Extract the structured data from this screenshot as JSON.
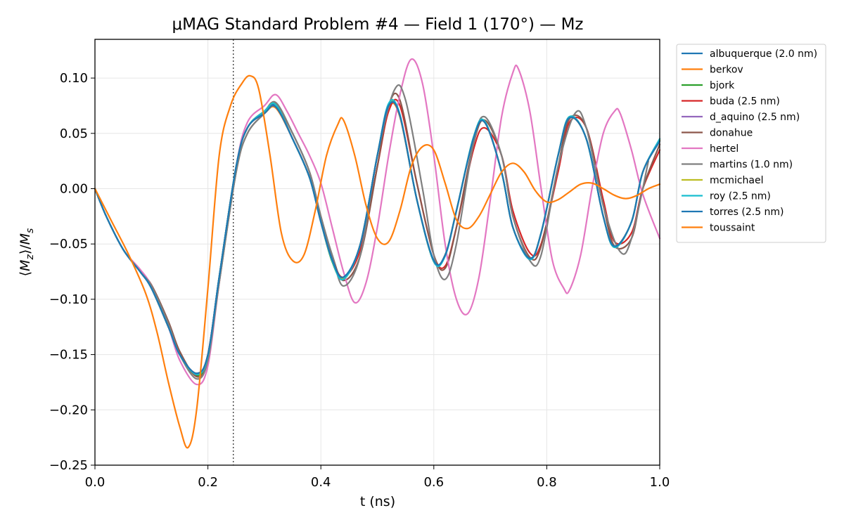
{
  "chart_data": {
    "type": "line",
    "title": "μMAG Standard Problem #4 — Field 1 (170°) — Mz",
    "xlabel": "t (ns)",
    "ylabel": "⟨M_z⟩/M_s",
    "ylabel_parts": [
      "⟨",
      "M",
      "z",
      "⟩/",
      "M",
      "s"
    ],
    "xlim": [
      0.0,
      1.0
    ],
    "ylim": [
      -0.25,
      0.135
    ],
    "xticks": [
      0.0,
      0.2,
      0.4,
      0.6,
      0.8,
      1.0
    ],
    "xtick_labels": [
      "0.0",
      "0.2",
      "0.4",
      "0.6",
      "0.8",
      "1.0"
    ],
    "yticks": [
      -0.25,
      -0.2,
      -0.15,
      -0.1,
      -0.05,
      0.0,
      0.05,
      0.1
    ],
    "ytick_labels": [
      "−0.25",
      "−0.20",
      "−0.15",
      "−0.10",
      "−0.05",
      "0.00",
      "0.05",
      "0.10"
    ],
    "grid": true,
    "legend_position": "outside-right",
    "reference_line": {
      "x": 0.245,
      "style": "dotted"
    },
    "series": [
      {
        "name": "albuquerque (2.0 nm)",
        "color": "#1f77b4",
        "x": [
          0.0,
          0.02,
          0.05,
          0.08,
          0.1,
          0.13,
          0.15,
          0.18,
          0.2,
          0.22,
          0.25,
          0.27,
          0.3,
          0.32,
          0.35,
          0.38,
          0.4,
          0.42,
          0.44,
          0.47,
          0.5,
          0.52,
          0.54,
          0.57,
          0.6,
          0.62,
          0.64,
          0.67,
          0.69,
          0.72,
          0.74,
          0.77,
          0.79,
          0.82,
          0.84,
          0.87,
          0.9,
          0.92,
          0.95,
          0.97,
          1.0
        ],
        "y": [
          0.0,
          -0.025,
          -0.055,
          -0.075,
          -0.09,
          -0.125,
          -0.15,
          -0.168,
          -0.15,
          -0.08,
          0.02,
          0.055,
          0.07,
          0.075,
          0.045,
          0.01,
          -0.03,
          -0.065,
          -0.08,
          -0.05,
          0.03,
          0.075,
          0.065,
          -0.01,
          -0.065,
          -0.06,
          -0.02,
          0.045,
          0.06,
          0.015,
          -0.035,
          -0.063,
          -0.04,
          0.03,
          0.064,
          0.045,
          -0.025,
          -0.052,
          -0.03,
          0.015,
          0.045
        ]
      },
      {
        "name": "berkov",
        "color": "#ff7f0e",
        "x": [
          0.0,
          0.02,
          0.05,
          0.08,
          0.1,
          0.13,
          0.15,
          0.18,
          0.2,
          0.22,
          0.25,
          0.27,
          0.3,
          0.32,
          0.35,
          0.38,
          0.4,
          0.42,
          0.44,
          0.47,
          0.5,
          0.52,
          0.54,
          0.57,
          0.6,
          0.62,
          0.64,
          0.67,
          0.69,
          0.72,
          0.74,
          0.77,
          0.79,
          0.82,
          0.84,
          0.87,
          0.9,
          0.92,
          0.95,
          0.97,
          1.0
        ],
        "y": [
          0.0,
          -0.025,
          -0.055,
          -0.075,
          -0.09,
          -0.125,
          -0.15,
          -0.168,
          -0.15,
          -0.08,
          0.02,
          0.055,
          0.068,
          0.073,
          0.045,
          0.01,
          -0.03,
          -0.065,
          -0.082,
          -0.05,
          0.03,
          0.074,
          0.065,
          -0.01,
          -0.066,
          -0.06,
          -0.02,
          0.045,
          0.06,
          0.015,
          -0.035,
          -0.063,
          -0.04,
          0.03,
          0.064,
          0.045,
          -0.025,
          -0.052,
          -0.03,
          0.015,
          0.043
        ]
      },
      {
        "name": "bjork",
        "color": "#2ca02c",
        "x": [
          0.0,
          0.02,
          0.05,
          0.08,
          0.1,
          0.13,
          0.15,
          0.18,
          0.2,
          0.22,
          0.25,
          0.27,
          0.3,
          0.32,
          0.35,
          0.38,
          0.4,
          0.42,
          0.44,
          0.47,
          0.5,
          0.52,
          0.54,
          0.57,
          0.6,
          0.62,
          0.64,
          0.67,
          0.69,
          0.72,
          0.74,
          0.77,
          0.79,
          0.82,
          0.84,
          0.87,
          0.9,
          0.92,
          0.95,
          0.97,
          1.0
        ],
        "y": [
          0.0,
          -0.025,
          -0.055,
          -0.075,
          -0.09,
          -0.125,
          -0.15,
          -0.169,
          -0.152,
          -0.08,
          0.02,
          0.055,
          0.07,
          0.076,
          0.045,
          0.01,
          -0.03,
          -0.066,
          -0.081,
          -0.05,
          0.03,
          0.076,
          0.066,
          -0.01,
          -0.066,
          -0.06,
          -0.02,
          0.046,
          0.061,
          0.015,
          -0.035,
          -0.063,
          -0.04,
          0.03,
          0.065,
          0.045,
          -0.025,
          -0.053,
          -0.03,
          0.015,
          0.044
        ]
      },
      {
        "name": "buda (2.5 nm)",
        "color": "#d62728",
        "x": [
          0.0,
          0.02,
          0.05,
          0.08,
          0.1,
          0.13,
          0.15,
          0.18,
          0.2,
          0.22,
          0.25,
          0.27,
          0.3,
          0.32,
          0.35,
          0.38,
          0.4,
          0.42,
          0.44,
          0.47,
          0.5,
          0.52,
          0.54,
          0.57,
          0.6,
          0.62,
          0.64,
          0.67,
          0.69,
          0.72,
          0.74,
          0.77,
          0.79,
          0.82,
          0.84,
          0.87,
          0.9,
          0.92,
          0.95,
          0.97,
          1.0
        ],
        "y": [
          0.0,
          -0.025,
          -0.055,
          -0.075,
          -0.09,
          -0.125,
          -0.15,
          -0.167,
          -0.15,
          -0.08,
          0.02,
          0.055,
          0.07,
          0.077,
          0.045,
          0.01,
          -0.03,
          -0.063,
          -0.08,
          -0.055,
          0.02,
          0.07,
          0.075,
          0.005,
          -0.06,
          -0.07,
          -0.035,
          0.035,
          0.055,
          0.03,
          -0.02,
          -0.058,
          -0.05,
          0.015,
          0.06,
          0.055,
          -0.01,
          -0.048,
          -0.04,
          0.0,
          0.035
        ]
      },
      {
        "name": "d_aquino (2.5 nm)",
        "color": "#9467bd",
        "x": [
          0.0,
          0.02,
          0.05,
          0.08,
          0.1,
          0.13,
          0.15,
          0.18,
          0.2,
          0.22,
          0.25,
          0.27,
          0.3,
          0.32,
          0.35,
          0.38,
          0.4,
          0.42,
          0.44,
          0.47,
          0.5,
          0.52,
          0.54,
          0.57,
          0.6,
          0.62,
          0.64,
          0.67,
          0.69,
          0.72,
          0.74,
          0.77,
          0.79,
          0.82,
          0.84,
          0.87,
          0.9,
          0.92,
          0.95,
          0.97,
          1.0
        ],
        "y": [
          0.0,
          -0.025,
          -0.055,
          -0.075,
          -0.09,
          -0.125,
          -0.15,
          -0.168,
          -0.151,
          -0.08,
          0.02,
          0.055,
          0.07,
          0.076,
          0.045,
          0.01,
          -0.03,
          -0.065,
          -0.081,
          -0.05,
          0.03,
          0.076,
          0.066,
          -0.01,
          -0.066,
          -0.06,
          -0.02,
          0.045,
          0.061,
          0.015,
          -0.035,
          -0.063,
          -0.04,
          0.03,
          0.064,
          0.045,
          -0.025,
          -0.052,
          -0.03,
          0.015,
          0.044
        ]
      },
      {
        "name": "donahue",
        "color": "#8c564b",
        "x": [
          0.0,
          0.02,
          0.05,
          0.08,
          0.1,
          0.13,
          0.15,
          0.18,
          0.2,
          0.22,
          0.25,
          0.27,
          0.3,
          0.32,
          0.35,
          0.38,
          0.4,
          0.42,
          0.44,
          0.47,
          0.5,
          0.52,
          0.54,
          0.57,
          0.6,
          0.62,
          0.64,
          0.67,
          0.69,
          0.72,
          0.74,
          0.77,
          0.79,
          0.82,
          0.84,
          0.87,
          0.9,
          0.92,
          0.95,
          0.97,
          1.0
        ],
        "y": [
          0.0,
          -0.025,
          -0.055,
          -0.075,
          -0.087,
          -0.12,
          -0.147,
          -0.17,
          -0.155,
          -0.085,
          0.015,
          0.05,
          0.068,
          0.077,
          0.05,
          0.015,
          -0.025,
          -0.06,
          -0.083,
          -0.06,
          0.02,
          0.075,
          0.08,
          0.005,
          -0.06,
          -0.072,
          -0.035,
          0.04,
          0.062,
          0.03,
          -0.025,
          -0.062,
          -0.052,
          0.02,
          0.063,
          0.055,
          -0.015,
          -0.052,
          -0.045,
          0.0,
          0.04
        ]
      },
      {
        "name": "hertel",
        "color": "#e377c2",
        "x": [
          0.0,
          0.02,
          0.05,
          0.08,
          0.1,
          0.13,
          0.15,
          0.18,
          0.2,
          0.22,
          0.25,
          0.27,
          0.3,
          0.32,
          0.34,
          0.36,
          0.38,
          0.4,
          0.42,
          0.44,
          0.46,
          0.48,
          0.5,
          0.52,
          0.54,
          0.56,
          0.58,
          0.6,
          0.62,
          0.64,
          0.66,
          0.68,
          0.7,
          0.72,
          0.74,
          0.75,
          0.77,
          0.79,
          0.81,
          0.83,
          0.84,
          0.86,
          0.88,
          0.9,
          0.92,
          0.93,
          0.95,
          0.97,
          1.0
        ],
        "y": [
          0.0,
          -0.025,
          -0.055,
          -0.073,
          -0.088,
          -0.125,
          -0.155,
          -0.177,
          -0.16,
          -0.085,
          0.02,
          0.06,
          0.075,
          0.085,
          0.07,
          0.05,
          0.03,
          0.005,
          -0.035,
          -0.075,
          -0.103,
          -0.085,
          -0.035,
          0.03,
          0.085,
          0.117,
          0.095,
          0.03,
          -0.05,
          -0.1,
          -0.113,
          -0.08,
          -0.01,
          0.065,
          0.105,
          0.108,
          0.07,
          0.0,
          -0.065,
          -0.09,
          -0.092,
          -0.06,
          0.0,
          0.05,
          0.07,
          0.068,
          0.035,
          -0.005,
          -0.045
        ]
      },
      {
        "name": "martins (1.0 nm)",
        "color": "#7f7f7f",
        "x": [
          0.0,
          0.02,
          0.05,
          0.08,
          0.1,
          0.13,
          0.15,
          0.18,
          0.2,
          0.22,
          0.25,
          0.27,
          0.3,
          0.32,
          0.35,
          0.38,
          0.4,
          0.42,
          0.44,
          0.47,
          0.5,
          0.53,
          0.55,
          0.58,
          0.6,
          0.62,
          0.64,
          0.67,
          0.69,
          0.72,
          0.74,
          0.77,
          0.79,
          0.82,
          0.85,
          0.87,
          0.9,
          0.93,
          0.95,
          0.98
        ],
        "y": [
          0.0,
          -0.025,
          -0.055,
          -0.075,
          -0.088,
          -0.122,
          -0.15,
          -0.172,
          -0.155,
          -0.085,
          0.015,
          0.05,
          0.068,
          0.078,
          0.05,
          0.015,
          -0.025,
          -0.06,
          -0.088,
          -0.06,
          0.03,
          0.089,
          0.08,
          0.0,
          -0.06,
          -0.082,
          -0.05,
          0.04,
          0.065,
          0.03,
          -0.025,
          -0.065,
          -0.06,
          0.02,
          0.068,
          0.055,
          -0.015,
          -0.057,
          -0.045,
          0.025
        ]
      },
      {
        "name": "mcmichael",
        "color": "#bcbd22",
        "x": [
          0.0,
          0.02,
          0.05,
          0.08,
          0.1,
          0.13,
          0.15,
          0.18,
          0.2,
          0.22,
          0.25,
          0.27,
          0.3,
          0.32,
          0.35,
          0.38,
          0.4,
          0.42,
          0.44,
          0.47,
          0.5,
          0.52,
          0.54,
          0.57,
          0.6,
          0.62,
          0.64,
          0.67,
          0.69,
          0.72,
          0.74,
          0.77,
          0.79,
          0.82,
          0.84,
          0.87,
          0.9,
          0.92,
          0.95,
          0.97,
          1.0
        ],
        "y": [
          0.0,
          -0.025,
          -0.055,
          -0.075,
          -0.09,
          -0.125,
          -0.15,
          -0.168,
          -0.151,
          -0.08,
          0.02,
          0.055,
          0.07,
          0.076,
          0.045,
          0.01,
          -0.03,
          -0.065,
          -0.081,
          -0.05,
          0.03,
          0.076,
          0.066,
          -0.01,
          -0.066,
          -0.06,
          -0.02,
          0.045,
          0.061,
          0.015,
          -0.035,
          -0.063,
          -0.04,
          0.03,
          0.064,
          0.045,
          -0.025,
          -0.052,
          -0.03,
          0.015,
          0.044
        ]
      },
      {
        "name": "roy (2.5 nm)",
        "color": "#17becf",
        "x": [
          0.0,
          0.02,
          0.05,
          0.08,
          0.1,
          0.13,
          0.15,
          0.18,
          0.2,
          0.22,
          0.25,
          0.27,
          0.3,
          0.32,
          0.35,
          0.38,
          0.4,
          0.42,
          0.44,
          0.47,
          0.5,
          0.52,
          0.54,
          0.57,
          0.6,
          0.62,
          0.64,
          0.67,
          0.69,
          0.72,
          0.74,
          0.77,
          0.79,
          0.82,
          0.84,
          0.87,
          0.9,
          0.92,
          0.95,
          0.97,
          1.0
        ],
        "y": [
          0.0,
          -0.025,
          -0.055,
          -0.075,
          -0.09,
          -0.125,
          -0.15,
          -0.168,
          -0.151,
          -0.08,
          0.02,
          0.055,
          0.07,
          0.076,
          0.045,
          0.01,
          -0.03,
          -0.065,
          -0.082,
          -0.05,
          0.03,
          0.077,
          0.067,
          -0.01,
          -0.066,
          -0.061,
          -0.02,
          0.046,
          0.061,
          0.015,
          -0.035,
          -0.064,
          -0.04,
          0.03,
          0.065,
          0.045,
          -0.025,
          -0.053,
          -0.03,
          0.015,
          0.045
        ]
      },
      {
        "name": "torres (2.5 nm)",
        "color": "#1f77b4",
        "x": [
          0.0,
          0.02,
          0.05,
          0.08,
          0.1,
          0.13,
          0.15,
          0.18,
          0.2,
          0.22,
          0.25,
          0.27,
          0.3,
          0.32,
          0.35,
          0.38,
          0.4,
          0.42,
          0.44,
          0.47,
          0.5,
          0.52,
          0.54,
          0.57,
          0.6,
          0.62,
          0.64,
          0.67,
          0.69,
          0.72,
          0.74,
          0.77,
          0.79,
          0.82,
          0.84,
          0.87,
          0.9,
          0.92,
          0.95,
          0.97,
          1.0
        ],
        "y": [
          0.0,
          -0.025,
          -0.055,
          -0.075,
          -0.09,
          -0.125,
          -0.15,
          -0.167,
          -0.15,
          -0.08,
          0.02,
          0.055,
          0.068,
          0.074,
          0.045,
          0.01,
          -0.03,
          -0.064,
          -0.08,
          -0.05,
          0.03,
          0.075,
          0.066,
          -0.01,
          -0.065,
          -0.06,
          -0.02,
          0.045,
          0.06,
          0.015,
          -0.035,
          -0.063,
          -0.04,
          0.03,
          0.064,
          0.045,
          -0.025,
          -0.052,
          -0.03,
          0.015,
          0.043
        ]
      },
      {
        "name": "toussaint",
        "color": "#ff7f0e",
        "x": [
          0.0,
          0.03,
          0.06,
          0.09,
          0.11,
          0.13,
          0.15,
          0.165,
          0.18,
          0.2,
          0.22,
          0.24,
          0.26,
          0.275,
          0.29,
          0.31,
          0.33,
          0.35,
          0.37,
          0.39,
          0.41,
          0.43,
          0.44,
          0.46,
          0.48,
          0.5,
          0.52,
          0.54,
          0.56,
          0.58,
          0.6,
          0.62,
          0.64,
          0.66,
          0.68,
          0.7,
          0.72,
          0.74,
          0.76,
          0.78,
          0.8,
          0.82,
          0.84,
          0.86,
          0.88,
          0.9,
          0.92,
          0.94,
          0.96,
          0.98,
          1.0
        ],
        "y": [
          0.0,
          -0.03,
          -0.06,
          -0.095,
          -0.13,
          -0.175,
          -0.215,
          -0.234,
          -0.2,
          -0.09,
          0.03,
          0.075,
          0.095,
          0.102,
          0.09,
          0.03,
          -0.04,
          -0.065,
          -0.06,
          -0.02,
          0.03,
          0.058,
          0.062,
          0.03,
          -0.015,
          -0.045,
          -0.048,
          -0.02,
          0.02,
          0.038,
          0.035,
          0.005,
          -0.028,
          -0.036,
          -0.025,
          -0.005,
          0.015,
          0.023,
          0.015,
          -0.002,
          -0.012,
          -0.01,
          -0.003,
          0.004,
          0.005,
          0.0,
          -0.006,
          -0.009,
          -0.006,
          0.0,
          0.004
        ]
      }
    ]
  }
}
